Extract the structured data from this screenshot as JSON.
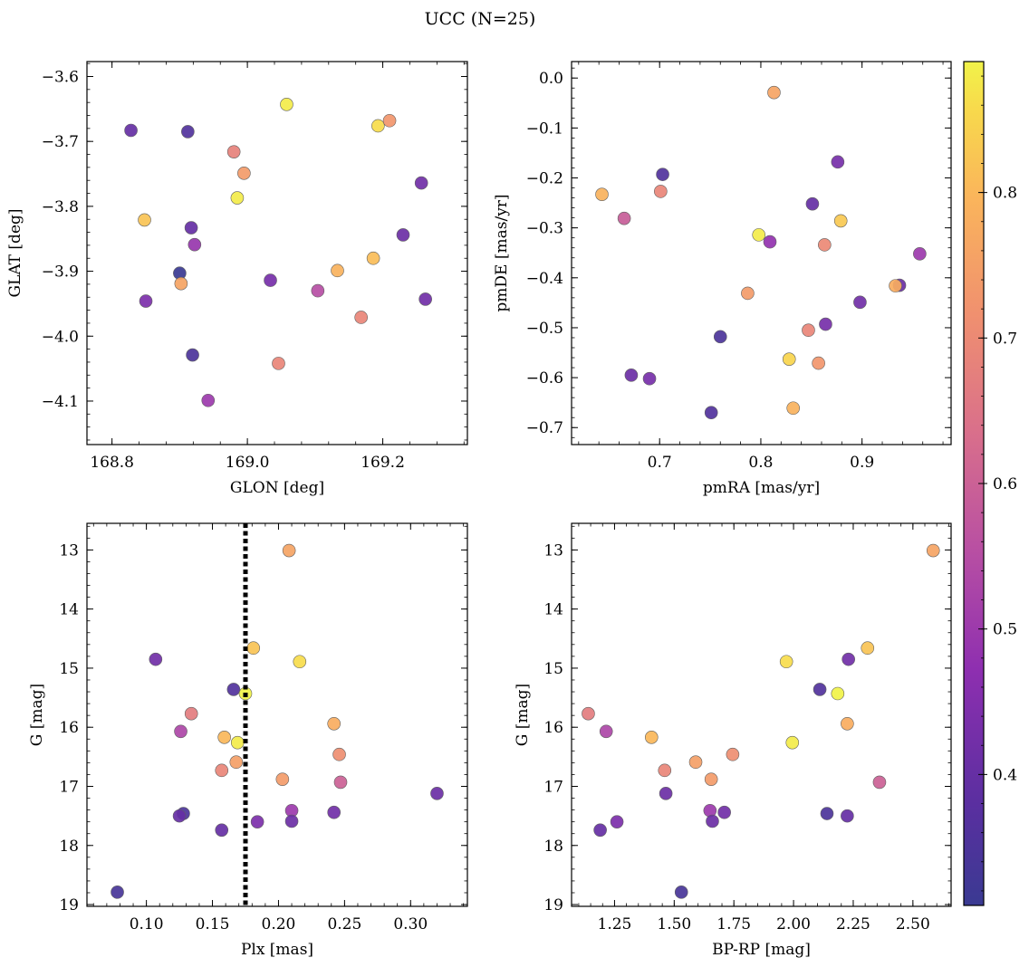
{
  "figure": {
    "title": "UCC (N=25)",
    "colormap": "plasma",
    "colorbar": {
      "range": [
        0.31,
        0.89
      ],
      "ticks": [
        0.4,
        0.5,
        0.6,
        0.7,
        0.8
      ]
    },
    "marker_edge": "#606060",
    "vline_color": "#000000"
  },
  "chart_data": [
    {
      "type": "scatter",
      "xlabel": "GLON [deg]",
      "ylabel": "GLAT [deg]",
      "xlim": [
        168.763,
        169.325
      ],
      "ylim": [
        -4.167,
        -3.577
      ],
      "xticks": [
        168.8,
        169.0,
        169.2
      ],
      "xtick_labels": [
        "168.8",
        "169.0",
        "169.2"
      ],
      "yticks": [
        -3.6,
        -3.7,
        -3.8,
        -3.9,
        -4.0,
        -4.1
      ],
      "ytick_labels": [
        "−3.6",
        "−3.7",
        "−3.8",
        "−3.9",
        "−4.0",
        "−4.1"
      ],
      "y_inverted": false,
      "points": [
        {
          "x": 168.828,
          "y": -3.683,
          "c": 0.4
        },
        {
          "x": 168.912,
          "y": -3.685,
          "c": 0.36
        },
        {
          "x": 169.058,
          "y": -3.643,
          "c": 0.88
        },
        {
          "x": 169.193,
          "y": -3.676,
          "c": 0.86
        },
        {
          "x": 169.21,
          "y": -3.668,
          "c": 0.73
        },
        {
          "x": 168.98,
          "y": -3.716,
          "c": 0.68
        },
        {
          "x": 168.995,
          "y": -3.749,
          "c": 0.74
        },
        {
          "x": 168.985,
          "y": -3.787,
          "c": 0.88
        },
        {
          "x": 169.257,
          "y": -3.764,
          "c": 0.42
        },
        {
          "x": 168.848,
          "y": -3.821,
          "c": 0.82
        },
        {
          "x": 168.917,
          "y": -3.833,
          "c": 0.4
        },
        {
          "x": 168.922,
          "y": -3.859,
          "c": 0.49
        },
        {
          "x": 169.23,
          "y": -3.844,
          "c": 0.41
        },
        {
          "x": 168.9,
          "y": -3.903,
          "c": 0.31
        },
        {
          "x": 168.902,
          "y": -3.919,
          "c": 0.76
        },
        {
          "x": 169.133,
          "y": -3.899,
          "c": 0.79
        },
        {
          "x": 169.186,
          "y": -3.88,
          "c": 0.81
        },
        {
          "x": 169.034,
          "y": -3.914,
          "c": 0.43
        },
        {
          "x": 168.85,
          "y": -3.946,
          "c": 0.44
        },
        {
          "x": 169.104,
          "y": -3.93,
          "c": 0.55
        },
        {
          "x": 169.263,
          "y": -3.943,
          "c": 0.42
        },
        {
          "x": 169.168,
          "y": -3.971,
          "c": 0.69
        },
        {
          "x": 168.919,
          "y": -4.029,
          "c": 0.35
        },
        {
          "x": 169.046,
          "y": -4.042,
          "c": 0.69
        },
        {
          "x": 168.942,
          "y": -4.099,
          "c": 0.5
        }
      ]
    },
    {
      "type": "scatter",
      "xlabel": "pmRA [mas/yr]",
      "ylabel": "pmDE [mas/yr]",
      "xlim": [
        0.613,
        0.988
      ],
      "ylim": [
        -0.734,
        0.033
      ],
      "xticks": [
        0.7,
        0.8,
        0.9
      ],
      "xtick_labels": [
        "0.7",
        "0.8",
        "0.9"
      ],
      "yticks": [
        0.0,
        -0.1,
        -0.2,
        -0.3,
        -0.4,
        -0.5,
        -0.6,
        -0.7
      ],
      "ytick_labels": [
        "0.0",
        "−0.1",
        "−0.2",
        "−0.3",
        "−0.4",
        "−0.5",
        "−0.6",
        "−0.7"
      ],
      "y_inverted": false,
      "points": [
        {
          "x": 0.813,
          "y": -0.029,
          "c": 0.76
        },
        {
          "x": 0.876,
          "y": -0.168,
          "c": 0.43
        },
        {
          "x": 0.703,
          "y": -0.193,
          "c": 0.36
        },
        {
          "x": 0.643,
          "y": -0.233,
          "c": 0.79
        },
        {
          "x": 0.701,
          "y": -0.227,
          "c": 0.69
        },
        {
          "x": 0.665,
          "y": -0.281,
          "c": 0.59
        },
        {
          "x": 0.851,
          "y": -0.252,
          "c": 0.4
        },
        {
          "x": 0.879,
          "y": -0.286,
          "c": 0.83
        },
        {
          "x": 0.798,
          "y": -0.314,
          "c": 0.88
        },
        {
          "x": 0.809,
          "y": -0.328,
          "c": 0.48
        },
        {
          "x": 0.863,
          "y": -0.334,
          "c": 0.7
        },
        {
          "x": 0.957,
          "y": -0.352,
          "c": 0.5
        },
        {
          "x": 0.937,
          "y": -0.415,
          "c": 0.41
        },
        {
          "x": 0.933,
          "y": -0.416,
          "c": 0.78
        },
        {
          "x": 0.787,
          "y": -0.431,
          "c": 0.74
        },
        {
          "x": 0.898,
          "y": -0.449,
          "c": 0.42
        },
        {
          "x": 0.864,
          "y": -0.493,
          "c": 0.43
        },
        {
          "x": 0.847,
          "y": -0.505,
          "c": 0.69
        },
        {
          "x": 0.76,
          "y": -0.518,
          "c": 0.35
        },
        {
          "x": 0.857,
          "y": -0.571,
          "c": 0.73
        },
        {
          "x": 0.828,
          "y": -0.563,
          "c": 0.85
        },
        {
          "x": 0.672,
          "y": -0.595,
          "c": 0.41
        },
        {
          "x": 0.69,
          "y": -0.602,
          "c": 0.43
        },
        {
          "x": 0.832,
          "y": -0.661,
          "c": 0.79
        },
        {
          "x": 0.751,
          "y": -0.67,
          "c": 0.36
        }
      ]
    },
    {
      "type": "scatter",
      "xlabel": "Plx [mas]",
      "ylabel": "G [mag]",
      "xlim": [
        0.055,
        0.343
      ],
      "ylim": [
        19.03,
        12.55
      ],
      "xticks": [
        0.1,
        0.15,
        0.2,
        0.25,
        0.3
      ],
      "xtick_labels": [
        "0.10",
        "0.15",
        "0.20",
        "0.25",
        "0.30"
      ],
      "yticks": [
        13,
        14,
        15,
        16,
        17,
        18,
        19
      ],
      "ytick_labels": [
        "13",
        "14",
        "15",
        "16",
        "17",
        "18",
        "19"
      ],
      "y_inverted": true,
      "vline": {
        "x": 0.175
      },
      "points": [
        {
          "x": 0.208,
          "y": 13.01,
          "c": 0.76
        },
        {
          "x": 0.181,
          "y": 14.66,
          "c": 0.82
        },
        {
          "x": 0.216,
          "y": 14.89,
          "c": 0.86
        },
        {
          "x": 0.107,
          "y": 14.85,
          "c": 0.42
        },
        {
          "x": 0.166,
          "y": 15.36,
          "c": 0.36
        },
        {
          "x": 0.175,
          "y": 15.43,
          "c": 0.89
        },
        {
          "x": 0.134,
          "y": 15.77,
          "c": 0.67
        },
        {
          "x": 0.242,
          "y": 15.94,
          "c": 0.78
        },
        {
          "x": 0.126,
          "y": 16.07,
          "c": 0.53
        },
        {
          "x": 0.159,
          "y": 16.17,
          "c": 0.8
        },
        {
          "x": 0.169,
          "y": 16.26,
          "c": 0.88
        },
        {
          "x": 0.246,
          "y": 16.46,
          "c": 0.71
        },
        {
          "x": 0.168,
          "y": 16.59,
          "c": 0.75
        },
        {
          "x": 0.157,
          "y": 16.73,
          "c": 0.69
        },
        {
          "x": 0.203,
          "y": 16.88,
          "c": 0.74
        },
        {
          "x": 0.247,
          "y": 16.93,
          "c": 0.6
        },
        {
          "x": 0.32,
          "y": 17.12,
          "c": 0.41
        },
        {
          "x": 0.21,
          "y": 17.41,
          "c": 0.5
        },
        {
          "x": 0.128,
          "y": 17.46,
          "c": 0.35
        },
        {
          "x": 0.125,
          "y": 17.5,
          "c": 0.4
        },
        {
          "x": 0.242,
          "y": 17.44,
          "c": 0.42
        },
        {
          "x": 0.21,
          "y": 17.59,
          "c": 0.41
        },
        {
          "x": 0.184,
          "y": 17.6,
          "c": 0.44
        },
        {
          "x": 0.157,
          "y": 17.74,
          "c": 0.4
        },
        {
          "x": 0.078,
          "y": 18.79,
          "c": 0.34
        }
      ]
    },
    {
      "type": "scatter",
      "xlabel": "BP-RP [mag]",
      "ylabel": "G [mag]",
      "xlim": [
        1.07,
        2.66
      ],
      "ylim": [
        19.03,
        12.55
      ],
      "xticks": [
        1.25,
        1.5,
        1.75,
        2.0,
        2.25,
        2.5
      ],
      "xtick_labels": [
        "1.25",
        "1.50",
        "1.75",
        "2.00",
        "2.25",
        "2.50"
      ],
      "yticks": [
        13,
        14,
        15,
        16,
        17,
        18,
        19
      ],
      "ytick_labels": [
        "13",
        "14",
        "15",
        "16",
        "17",
        "18",
        "19"
      ],
      "y_inverted": true,
      "points": [
        {
          "x": 2.585,
          "y": 13.01,
          "c": 0.76
        },
        {
          "x": 2.31,
          "y": 14.66,
          "c": 0.82
        },
        {
          "x": 1.97,
          "y": 14.89,
          "c": 0.86
        },
        {
          "x": 2.23,
          "y": 14.85,
          "c": 0.42
        },
        {
          "x": 2.11,
          "y": 15.36,
          "c": 0.36
        },
        {
          "x": 2.185,
          "y": 15.43,
          "c": 0.89
        },
        {
          "x": 1.14,
          "y": 15.77,
          "c": 0.67
        },
        {
          "x": 2.225,
          "y": 15.94,
          "c": 0.78
        },
        {
          "x": 1.215,
          "y": 16.07,
          "c": 0.53
        },
        {
          "x": 1.405,
          "y": 16.17,
          "c": 0.8
        },
        {
          "x": 1.995,
          "y": 16.26,
          "c": 0.88
        },
        {
          "x": 1.745,
          "y": 16.46,
          "c": 0.71
        },
        {
          "x": 1.59,
          "y": 16.59,
          "c": 0.75
        },
        {
          "x": 1.46,
          "y": 16.73,
          "c": 0.69
        },
        {
          "x": 1.655,
          "y": 16.88,
          "c": 0.74
        },
        {
          "x": 2.36,
          "y": 16.93,
          "c": 0.6
        },
        {
          "x": 1.465,
          "y": 17.12,
          "c": 0.41
        },
        {
          "x": 1.65,
          "y": 17.41,
          "c": 0.5
        },
        {
          "x": 2.14,
          "y": 17.46,
          "c": 0.35
        },
        {
          "x": 2.225,
          "y": 17.5,
          "c": 0.4
        },
        {
          "x": 1.71,
          "y": 17.44,
          "c": 0.42
        },
        {
          "x": 1.66,
          "y": 17.59,
          "c": 0.41
        },
        {
          "x": 1.26,
          "y": 17.6,
          "c": 0.44
        },
        {
          "x": 1.19,
          "y": 17.74,
          "c": 0.4
        },
        {
          "x": 1.53,
          "y": 18.79,
          "c": 0.34
        }
      ]
    }
  ]
}
